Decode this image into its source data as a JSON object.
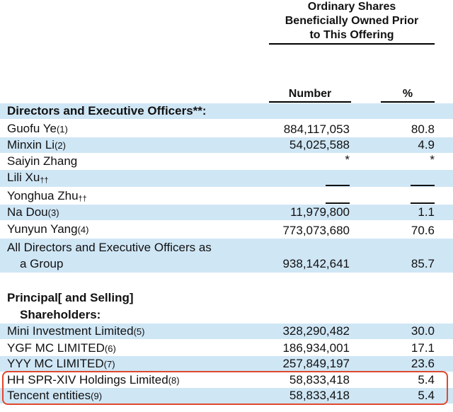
{
  "header": {
    "group_title_lines": [
      "Ordinary Shares",
      "Beneficially Owned Prior",
      "to This Offering"
    ],
    "col_number": "Number",
    "col_percent": "%"
  },
  "rows": [
    {
      "label": "Directors and Executive Officers**:",
      "bold": true
    },
    {
      "label": "Guofu Ye",
      "note": "(1)",
      "number": "884,117,053",
      "percent": "80.8"
    },
    {
      "label": "Minxin Li",
      "note": "(2)",
      "number": "54,025,588",
      "percent": "4.9"
    },
    {
      "label": "Saiyin Zhang",
      "number": "*",
      "percent": "*"
    },
    {
      "label": "Lili Xu",
      "note": "††",
      "number": "—",
      "percent": "—"
    },
    {
      "label": "Yonghua Zhu",
      "note": "††",
      "number": "—",
      "percent": "—"
    },
    {
      "label": "Na Dou",
      "note": "(3)",
      "number": "11,979,800",
      "percent": "1.1"
    },
    {
      "label": "Yunyun Yang",
      "note": "(4)",
      "number": "773,073,680",
      "percent": "70.6"
    },
    {
      "label_line1": "All Directors and Executive Officers as",
      "label_line2": "a Group",
      "number": "938,142,641",
      "percent": "85.7"
    },
    {
      "label_line1": "Principal[ and Selling]",
      "label_line2": "Shareholders:",
      "bold": true
    },
    {
      "label": "Mini Investment Limited",
      "note": "(5)",
      "number": "328,290,482",
      "percent": "30.0"
    },
    {
      "label": "YGF MC LIMITED",
      "note": "(6)",
      "number": "186,934,001",
      "percent": "17.1"
    },
    {
      "label": "YYY MC LIMITED",
      "note": "(7)",
      "number": "257,849,197",
      "percent": "23.6"
    },
    {
      "label": "HH SPR-XIV Holdings Limited",
      "note": "(8)",
      "number": "58,833,418",
      "percent": "5.4"
    },
    {
      "label": "Tencent entities",
      "note": "(9)",
      "number": "58,833,418",
      "percent": "5.4"
    }
  ]
}
